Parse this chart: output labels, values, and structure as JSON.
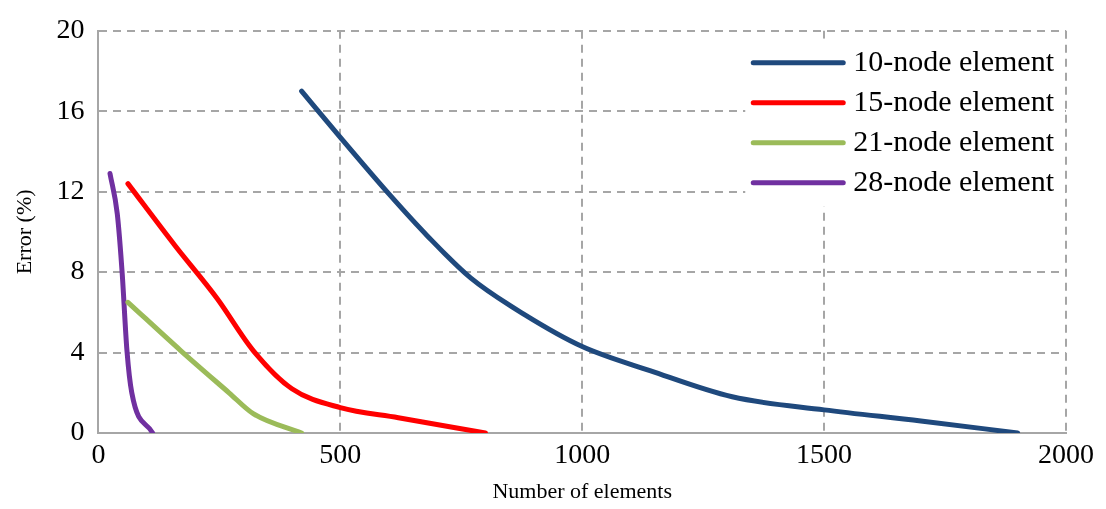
{
  "chart_data": {
    "type": "line",
    "xlabel": "Number of elements",
    "ylabel": "Error (%)",
    "xlim": [
      0,
      2000
    ],
    "xticks": [
      0,
      500,
      1000,
      1500,
      2000
    ],
    "ylim": [
      0,
      20
    ],
    "yticks": [
      0,
      4,
      8,
      12,
      16,
      20
    ],
    "grid": true,
    "line_style": "solid",
    "marker": "none",
    "legend": "top right",
    "series": [
      {
        "name": "10-node element",
        "color": "#1f497d",
        "x": [
          420,
          500,
          600,
          680,
          770,
          880,
          1000,
          1140,
          1310,
          1500,
          1700,
          1900
        ],
        "values": [
          17.0,
          14.7,
          11.9,
          9.8,
          7.7,
          5.9,
          4.3,
          3.1,
          1.8,
          1.15,
          0.6,
          0
        ]
      },
      {
        "name": "15-node element",
        "color": "#ff0000",
        "x": [
          61,
          159,
          245,
          320,
          400,
          500,
          620,
          800
        ],
        "values": [
          12.4,
          9.3,
          6.7,
          4.1,
          2.2,
          1.26,
          0.76,
          0
        ]
      },
      {
        "name": "21-node element",
        "color": "#9bbb59",
        "x": [
          61,
          170,
          270,
          320,
          420
        ],
        "values": [
          6.5,
          4.1,
          2.0,
          0.96,
          0
        ]
      },
      {
        "name": "28-node element",
        "color": "#7030a0",
        "x": [
          24,
          39,
          49,
          59,
          69,
          112
        ],
        "values": [
          12.9,
          10.9,
          8.0,
          4.1,
          2.0,
          0
        ]
      }
    ]
  }
}
